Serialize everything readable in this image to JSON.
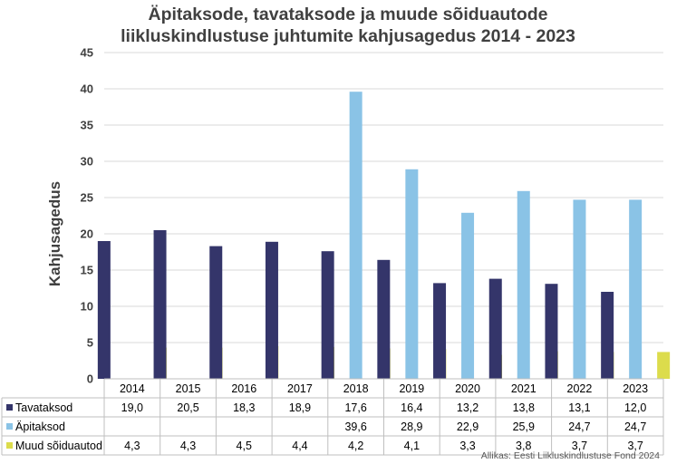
{
  "title_line1": "Äpitaksode, tavataksode ja muude sõiduautode",
  "title_line2": "liikluskindlustuse juhtumite kahjusagedus 2014 - 2023",
  "source": "Allikas: Eesti Liikluskindlustuse Fond 2024",
  "chart_data": {
    "type": "bar",
    "title": "Äpitaksode, tavataksode ja muude sõiduautode liikluskindlustuse juhtumite kahjusagedus 2014 - 2023",
    "xlabel": "",
    "ylabel": "Kahjusagedus",
    "ylim": [
      0,
      45
    ],
    "yticks": [
      "0",
      "5",
      "10",
      "15",
      "20",
      "25",
      "30",
      "35",
      "40",
      "45"
    ],
    "grid": true,
    "legend": "data-table-left",
    "categories": [
      "2014",
      "2015",
      "2016",
      "2017",
      "2018",
      "2019",
      "2020",
      "2021",
      "2022",
      "2023"
    ],
    "series": [
      {
        "name": "Tavataksod",
        "color": "#34356a",
        "values": [
          19.0,
          20.5,
          18.3,
          18.9,
          17.6,
          16.4,
          13.2,
          13.8,
          13.1,
          12.0
        ],
        "labels": [
          "19,0",
          "20,5",
          "18,3",
          "18,9",
          "17,6",
          "16,4",
          "13,2",
          "13,8",
          "13,1",
          "12,0"
        ]
      },
      {
        "name": "Äpitaksod",
        "color": "#8ac3e6",
        "values": [
          null,
          null,
          null,
          null,
          39.6,
          28.9,
          22.9,
          25.9,
          24.7,
          24.7
        ],
        "labels": [
          "",
          "",
          "",
          "",
          "39,6",
          "28,9",
          "22,9",
          "25,9",
          "24,7",
          "24,7"
        ]
      },
      {
        "name": "Muud sõiduautod",
        "color": "#dcdc4c",
        "values": [
          4.3,
          4.3,
          4.5,
          4.4,
          4.2,
          4.1,
          3.3,
          3.8,
          3.7,
          3.7
        ],
        "labels": [
          "4,3",
          "4,3",
          "4,5",
          "4,4",
          "4,2",
          "4,1",
          "3,3",
          "3,8",
          "3,7",
          "3,7"
        ]
      }
    ]
  }
}
